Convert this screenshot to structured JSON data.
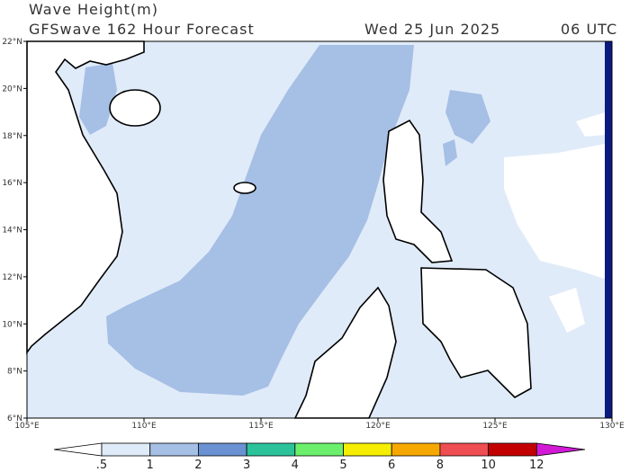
{
  "header": {
    "title": "Wave Height(m)",
    "subtitle": "GFSwave 162 Hour Forecast",
    "date": "Wed 25 Jun 2025",
    "time": "06 UTC"
  },
  "map": {
    "lon_range": [
      105,
      130
    ],
    "lat_range": [
      6,
      22
    ],
    "lon_ticks": [
      {
        "value": 105,
        "label": "105°E"
      },
      {
        "value": 110,
        "label": "110°E"
      },
      {
        "value": 115,
        "label": "115°E"
      },
      {
        "value": 120,
        "label": "120°E"
      },
      {
        "value": 125,
        "label": "125°E"
      },
      {
        "value": 130,
        "label": "130°E"
      }
    ],
    "lat_ticks": [
      {
        "value": 6,
        "label": "6°N"
      },
      {
        "value": 8,
        "label": "8°N"
      },
      {
        "value": 10,
        "label": "10°N"
      },
      {
        "value": 12,
        "label": "12°N"
      },
      {
        "value": 14,
        "label": "14°N"
      },
      {
        "value": 16,
        "label": "16°N"
      },
      {
        "value": 18,
        "label": "18°N"
      },
      {
        "value": 20,
        "label": "20°N"
      },
      {
        "value": 22,
        "label": "22°N"
      }
    ]
  },
  "colorbar": {
    "levels": [
      {
        "value": 0.5,
        "label": ".5"
      },
      1,
      2,
      3,
      4,
      5,
      6,
      8,
      10,
      12
    ],
    "colors": [
      "#ffffff",
      "#e0ebf9",
      "#a6bfe5",
      "#6a91d1",
      "#2cc39b",
      "#6cef6c",
      "#f5ee00",
      "#f7a800",
      "#ef4e52",
      "#c30000",
      "#d21ad6"
    ]
  }
}
